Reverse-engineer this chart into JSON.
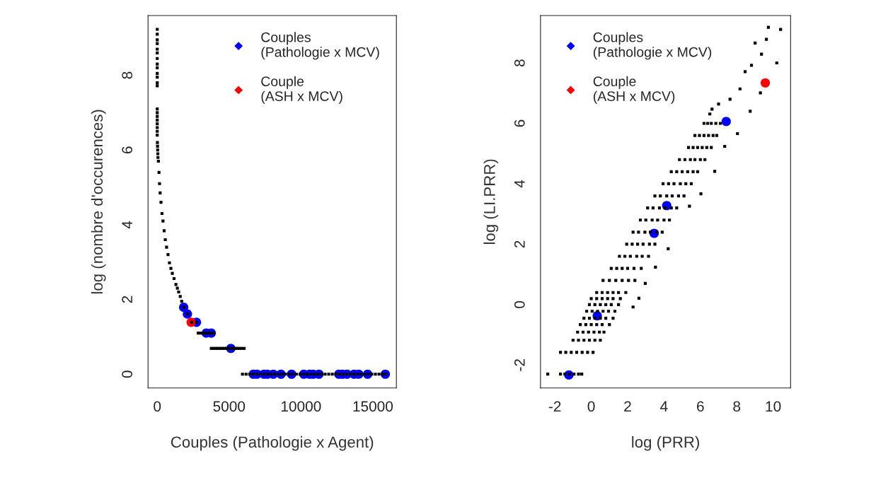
{
  "chart_data": [
    {
      "type": "scatter",
      "xlabel": "Couples (Pathologie x Agent)",
      "ylabel": "log (nombre d'occurences)",
      "xlim": [
        -640,
        16640
      ],
      "ylim": [
        -0.37,
        9.6
      ],
      "xticks": [
        0,
        5000,
        10000,
        15000
      ],
      "yticks": [
        0,
        2,
        4,
        6,
        8
      ],
      "grid": false,
      "legend": "top right",
      "marker": "circle",
      "series": [
        {
          "color": "#000000",
          "marker": "square",
          "x": [
            0,
            0,
            0,
            0,
            0,
            0,
            0,
            0,
            0,
            0,
            0,
            0,
            0,
            0,
            0,
            0,
            0,
            0,
            0,
            0,
            0,
            10,
            20,
            30,
            40,
            50,
            80,
            120,
            160,
            200,
            260,
            330,
            400,
            480,
            560,
            650,
            750,
            850,
            950,
            1050,
            1170,
            1300,
            1400,
            1490,
            1600,
            1700,
            1850,
            2100,
            2400,
            2730,
            2850,
            3000,
            3150,
            3300,
            3450,
            3600,
            3750,
            3900,
            3760,
            3910,
            4060,
            4210,
            4360,
            4510,
            4660,
            4810,
            4960,
            5110,
            5260,
            5410,
            5560,
            5710,
            5860,
            6050,
            5930,
            6180,
            6430,
            6680,
            6930,
            7180,
            7430,
            7680,
            7930,
            8180,
            8430,
            8680,
            8930,
            9180,
            9430,
            9680,
            9930,
            10180,
            10430,
            10680,
            10930,
            11180,
            11430,
            11680,
            11930,
            12180,
            12430,
            12680,
            12930,
            13180,
            13430,
            13680,
            13930,
            14180,
            14430,
            14680,
            14930,
            15180,
            15430,
            15680,
            15900
          ],
          "values": [
            9.23,
            9.1,
            8.95,
            8.85,
            8.7,
            8.6,
            8.45,
            8.3,
            8.2,
            8.05,
            7.95,
            7.8,
            7.72,
            7.1,
            7.0,
            6.9,
            6.8,
            6.7,
            6.6,
            6.5,
            6.4,
            6.2,
            6.1,
            6.0,
            5.9,
            5.8,
            5.7,
            5.4,
            5.1,
            4.85,
            4.6,
            4.3,
            4.1,
            3.84,
            3.6,
            3.4,
            3.2,
            2.98,
            2.83,
            2.7,
            2.56,
            2.4,
            2.3,
            2.2,
            2.08,
            1.95,
            1.79,
            1.61,
            1.39,
            1.39,
            1.1,
            1.1,
            1.1,
            1.1,
            1.1,
            1.1,
            1.1,
            1.1,
            0.69,
            0.69,
            0.69,
            0.69,
            0.69,
            0.69,
            0.69,
            0.69,
            0.69,
            0.69,
            0.69,
            0.69,
            0.69,
            0.69,
            0.69,
            0.69,
            0,
            0,
            0,
            0,
            0,
            0,
            0,
            0,
            0,
            0,
            0,
            0,
            0,
            0,
            0,
            0,
            0,
            0,
            0,
            0,
            0,
            0,
            0,
            0,
            0,
            0,
            0,
            0,
            0,
            0,
            0,
            0,
            0,
            0,
            0,
            0,
            0,
            0,
            0,
            0,
            0
          ]
        },
        {
          "name": "Couples\n(Pathologie x MCV)",
          "color": "#0000ff",
          "x": [
            1840,
            2100,
            2730,
            3410,
            3760,
            5120,
            6690,
            6940,
            7430,
            7670,
            8080,
            8610,
            9350,
            10200,
            10600,
            10850,
            11250,
            12640,
            12890,
            13210,
            13700,
            14020,
            14640,
            15870
          ],
          "values": [
            1.79,
            1.61,
            1.39,
            1.1,
            1.1,
            0.69,
            0,
            0,
            0,
            0,
            0,
            0,
            0,
            0,
            0,
            0,
            0,
            0,
            0,
            0,
            0,
            0,
            0,
            0
          ]
        },
        {
          "name": "Couple\n(ASH x MCV)",
          "color": "#ff0000",
          "x": [
            2360
          ],
          "values": [
            1.39
          ]
        }
      ]
    },
    {
      "type": "scatter",
      "xlabel": "log (PRR)",
      "ylabel": "log (LI.PRR)",
      "xlim": [
        -2.79,
        10.96
      ],
      "ylim": [
        -2.76,
        9.57
      ],
      "xticks": [
        -2,
        0,
        2,
        4,
        6,
        8,
        10
      ],
      "yticks": [
        -2,
        0,
        2,
        4,
        6,
        8
      ],
      "grid": false,
      "legend": "top left",
      "marker": "circle",
      "series": [
        {
          "color": "#000000",
          "marker": "square",
          "x": [
            -2.39,
            -1.69,
            -1.45,
            -1.2,
            -0.95,
            -0.7,
            -0.52,
            -1.69,
            -1.4,
            -1.1,
            -0.8,
            -0.5,
            -0.2,
            0.1,
            -1.0,
            -0.7,
            -0.4,
            -0.1,
            0.2,
            0.5,
            -0.75,
            -0.45,
            -0.15,
            0.15,
            0.45,
            0.7,
            -0.6,
            -0.3,
            0,
            0.3,
            0.6,
            1.0,
            -0.4,
            -0.1,
            0.2,
            0.5,
            0.8,
            1.2,
            -0.25,
            0.05,
            0.35,
            0.65,
            0.95,
            1.3,
            -0.1,
            0.2,
            0.5,
            0.8,
            1.1,
            1.5,
            0.0,
            0.3,
            0.6,
            0.9,
            1.2,
            1.6,
            2.3,
            0.3,
            0.6,
            0.9,
            1.2,
            1.5,
            1.9,
            0.65,
            1.0,
            1.35,
            1.7,
            2.05,
            2.4,
            1.1,
            1.4,
            1.7,
            2.0,
            2.35,
            2.75,
            1.55,
            1.85,
            2.15,
            2.5,
            2.8,
            3.15,
            1.95,
            2.25,
            2.55,
            2.85,
            3.2,
            3.5,
            2.3,
            2.6,
            2.95,
            3.25,
            3.6,
            3.9,
            2.7,
            3.0,
            3.35,
            3.65,
            4.0,
            4.3,
            3.1,
            3.4,
            3.75,
            4.05,
            4.4,
            4.7,
            3.5,
            3.8,
            4.15,
            4.45,
            4.8,
            5.1,
            3.95,
            4.25,
            4.55,
            4.9,
            5.2,
            5.5,
            4.4,
            4.7,
            5.0,
            5.3,
            5.6,
            5.85,
            4.85,
            5.15,
            5.45,
            5.7,
            6.0,
            6.25,
            5.35,
            5.6,
            5.85,
            6.1,
            6.35,
            6.6,
            5.7,
            5.95,
            6.2,
            6.45,
            6.7,
            6.9,
            6.2,
            6.4,
            6.6,
            6.85,
            7.1,
            2.62,
            2.97,
            3.53,
            4.23,
            5.4,
            6.03,
            6.79,
            7.34,
            8.04,
            8.74,
            9.3,
            10.2,
            10.41,
            9.74,
            9.63,
            9.01,
            9.36,
            8.81,
            8.46,
            8.18,
            7.63,
            7.0,
            6.64,
            6.52
          ],
          "values": [
            -2.3,
            -2.3,
            -2.3,
            -2.3,
            -2.3,
            -2.3,
            -2.3,
            -1.58,
            -1.58,
            -1.58,
            -1.58,
            -1.58,
            -1.58,
            -1.58,
            -1.18,
            -1.18,
            -1.18,
            -1.18,
            -1.18,
            -1.18,
            -0.91,
            -0.91,
            -0.91,
            -0.91,
            -0.91,
            -0.91,
            -0.66,
            -0.66,
            -0.66,
            -0.66,
            -0.66,
            -0.66,
            -0.45,
            -0.45,
            -0.45,
            -0.45,
            -0.45,
            -0.45,
            -0.22,
            -0.22,
            -0.22,
            -0.22,
            -0.22,
            -0.22,
            0.0,
            0.0,
            0.0,
            0.0,
            0.0,
            0.0,
            0.2,
            0.2,
            0.2,
            0.2,
            0.2,
            0.2,
            -0.08,
            0.4,
            0.4,
            0.4,
            0.4,
            0.4,
            0.4,
            0.8,
            0.8,
            0.8,
            0.8,
            0.8,
            0.8,
            1.2,
            1.2,
            1.2,
            1.2,
            1.2,
            1.2,
            1.6,
            1.6,
            1.6,
            1.6,
            1.6,
            1.6,
            2.0,
            2.0,
            2.0,
            2.0,
            2.0,
            2.0,
            2.4,
            2.4,
            2.4,
            2.4,
            2.4,
            2.4,
            2.8,
            2.8,
            2.8,
            2.8,
            2.8,
            2.8,
            3.2,
            3.2,
            3.2,
            3.2,
            3.2,
            3.2,
            3.6,
            3.6,
            3.6,
            3.6,
            3.6,
            3.6,
            4.0,
            4.0,
            4.0,
            4.0,
            4.0,
            4.0,
            4.4,
            4.4,
            4.4,
            4.4,
            4.4,
            4.4,
            4.8,
            4.8,
            4.8,
            4.8,
            4.8,
            4.8,
            5.2,
            5.2,
            5.2,
            5.2,
            5.2,
            5.2,
            5.6,
            5.6,
            5.6,
            5.6,
            5.6,
            5.6,
            6.0,
            6.0,
            6.0,
            6.0,
            6.0,
            0.21,
            0.7,
            1.24,
            1.85,
            3.26,
            3.67,
            4.41,
            5.24,
            5.66,
            6.4,
            7.01,
            8.0,
            9.11,
            9.18,
            8.78,
            8.66,
            8.29,
            7.92,
            7.71,
            7.14,
            6.8,
            6.64,
            6.47,
            6.31
          ]
        },
        {
          "name": "Couples\n(Pathologie x MCV)",
          "color": "#0000ff",
          "x": [
            -1.23,
            0.33,
            3.46,
            4.15,
            7.42
          ],
          "values": [
            -2.33,
            -0.37,
            2.36,
            3.28,
            6.06
          ]
        },
        {
          "name": "Couple\n(ASH x MCV)",
          "color": "#ff0000",
          "x": [
            9.57
          ],
          "values": [
            7.34
          ]
        }
      ]
    }
  ]
}
